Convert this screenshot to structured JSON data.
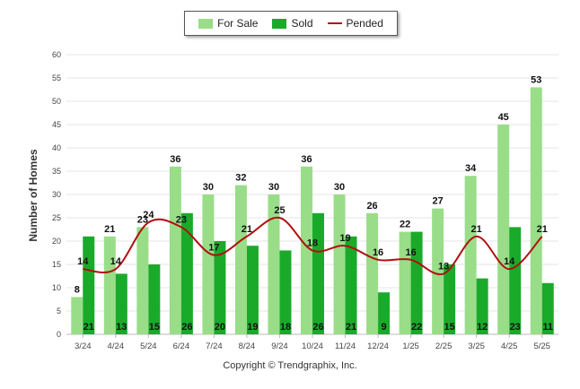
{
  "copyright": "Copyright © Trendgraphix, Inc.",
  "chart_data": {
    "type": "bar",
    "ylabel": "Number of Homes",
    "xlabel": "",
    "ylim": [
      0,
      60
    ],
    "yticks": [
      0,
      5,
      10,
      15,
      20,
      25,
      30,
      35,
      40,
      45,
      50,
      55,
      60
    ],
    "grid": true,
    "legend_position": "top-center",
    "categories": [
      "3/24",
      "4/24",
      "5/24",
      "6/24",
      "7/24",
      "8/24",
      "9/24",
      "10/24",
      "11/24",
      "12/24",
      "1/25",
      "2/25",
      "3/25",
      "4/25",
      "5/25"
    ],
    "series": [
      {
        "name": "For Sale",
        "kind": "bar",
        "color": "#99dd88",
        "values": [
          8,
          21,
          23,
          36,
          30,
          32,
          30,
          36,
          30,
          26,
          22,
          27,
          34,
          45,
          53
        ]
      },
      {
        "name": "Sold",
        "kind": "bar",
        "color": "#1aaa2a",
        "values": [
          21,
          13,
          15,
          26,
          20,
          19,
          18,
          26,
          21,
          9,
          22,
          15,
          12,
          23,
          11
        ]
      },
      {
        "name": "Pended",
        "kind": "line",
        "color": "#b01010",
        "values": [
          14,
          14,
          24,
          23,
          17,
          21,
          25,
          18,
          19,
          16,
          16,
          13,
          21,
          14,
          21
        ]
      }
    ]
  }
}
